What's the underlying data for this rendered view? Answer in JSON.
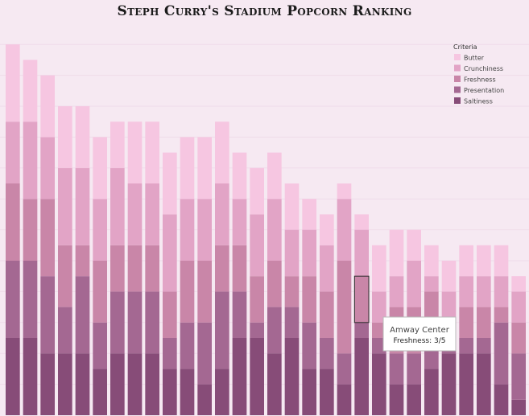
{
  "chart_data": {
    "type": "bar",
    "stacked": true,
    "title": "Steph Curry's Stadium Popcorn Ranking",
    "xlabel": "",
    "ylabel": "",
    "ylim": [
      0,
      24
    ],
    "legend": {
      "title": "Criteria",
      "placement": "top-right"
    },
    "categories": [
      "",
      "",
      "",
      "",
      "",
      "",
      "",
      "",
      "",
      "",
      "",
      "",
      "",
      "",
      "",
      "",
      "",
      "",
      "",
      "",
      "",
      "",
      "",
      "",
      "",
      "",
      "",
      "",
      "",
      ""
    ],
    "series": [
      {
        "name": "Saltiness",
        "color": "#874c78",
        "values": [
          5,
          5,
          4,
          4,
          4,
          3,
          4,
          4,
          4,
          3,
          3,
          2,
          3,
          5,
          5,
          4,
          5,
          3,
          3,
          2,
          5,
          4,
          2,
          2,
          3,
          4,
          4,
          4,
          2,
          1
        ]
      },
      {
        "name": "Presentation",
        "color": "#a46892",
        "values": [
          5,
          5,
          5,
          3,
          5,
          3,
          4,
          4,
          4,
          2,
          3,
          4,
          5,
          3,
          1,
          3,
          2,
          3,
          2,
          2,
          1,
          1,
          2,
          2,
          2,
          1,
          1,
          1,
          4,
          3
        ]
      },
      {
        "name": "Freshness",
        "color": "#c986a8",
        "values": [
          5,
          4,
          5,
          4,
          2,
          4,
          3,
          3,
          3,
          3,
          4,
          4,
          3,
          3,
          3,
          3,
          2,
          3,
          3,
          6,
          3,
          1,
          3,
          3,
          3,
          1,
          2,
          2,
          1,
          2
        ]
      },
      {
        "name": "Crunchiness",
        "color": "#e2a4c6",
        "values": [
          4,
          5,
          4,
          5,
          5,
          4,
          5,
          4,
          4,
          5,
          4,
          4,
          4,
          3,
          4,
          4,
          3,
          3,
          3,
          4,
          3,
          2,
          2,
          3,
          1,
          2,
          2,
          2,
          2,
          2
        ]
      },
      {
        "name": "Butter",
        "color": "#f6c6e1",
        "values": [
          5,
          4,
          4,
          4,
          4,
          4,
          3,
          4,
          4,
          4,
          4,
          4,
          4,
          3,
          3,
          3,
          3,
          2,
          2,
          1,
          1,
          3,
          3,
          2,
          2,
          2,
          2,
          2,
          2,
          1
        ]
      }
    ],
    "tooltip": {
      "title": "Amway Center",
      "detail": "Freshness: 3/5",
      "series": "Freshness",
      "category_index": 20
    }
  }
}
